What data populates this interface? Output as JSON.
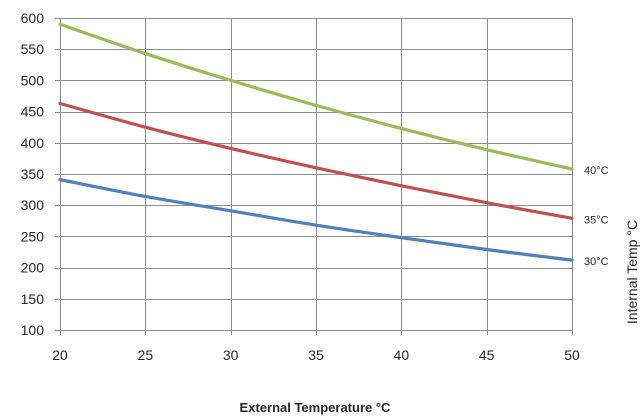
{
  "chart_data": {
    "type": "line",
    "title": "",
    "xlabel": "External Temperature °C",
    "ylabel": "Internal Temp °C",
    "xlim": [
      20,
      50
    ],
    "ylim": [
      100,
      600
    ],
    "xticks": [
      20,
      25,
      30,
      35,
      40,
      45,
      50
    ],
    "yticks": [
      100,
      150,
      200,
      250,
      300,
      350,
      400,
      450,
      500,
      550,
      600
    ],
    "grid": true,
    "series": [
      {
        "name": "40°C",
        "color": "#9bbb59",
        "x": [
          20,
          25,
          30,
          35,
          40,
          45,
          50
        ],
        "y": [
          590,
          543,
          500,
          460,
          423,
          389,
          358
        ]
      },
      {
        "name": "35°C",
        "color": "#c0504d",
        "x": [
          20,
          25,
          30,
          35,
          40,
          45,
          50
        ],
        "y": [
          463,
          425,
          391,
          360,
          331,
          304,
          279
        ]
      },
      {
        "name": "30°C",
        "color": "#4f81bd",
        "x": [
          20,
          25,
          30,
          35,
          40,
          45,
          50
        ],
        "y": [
          341,
          314,
          291,
          268,
          248,
          229,
          212
        ]
      }
    ]
  }
}
